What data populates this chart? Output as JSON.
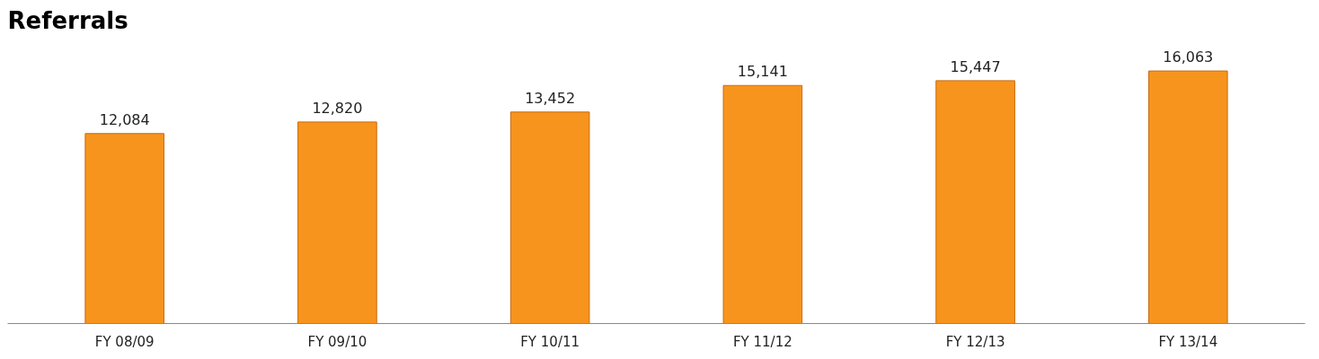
{
  "chart_data": {
    "type": "bar",
    "title": "Referrals",
    "categories": [
      "FY 08/09",
      "FY 09/10",
      "FY 10/11",
      "FY 11/12",
      "FY 12/13",
      "FY 13/14"
    ],
    "values": [
      12084,
      12820,
      13452,
      15141,
      15447,
      16063
    ],
    "value_labels": [
      "12,084",
      "12,820",
      "13,452",
      "15,141",
      "15,447",
      "16,063"
    ],
    "color": "#f7941d"
  }
}
